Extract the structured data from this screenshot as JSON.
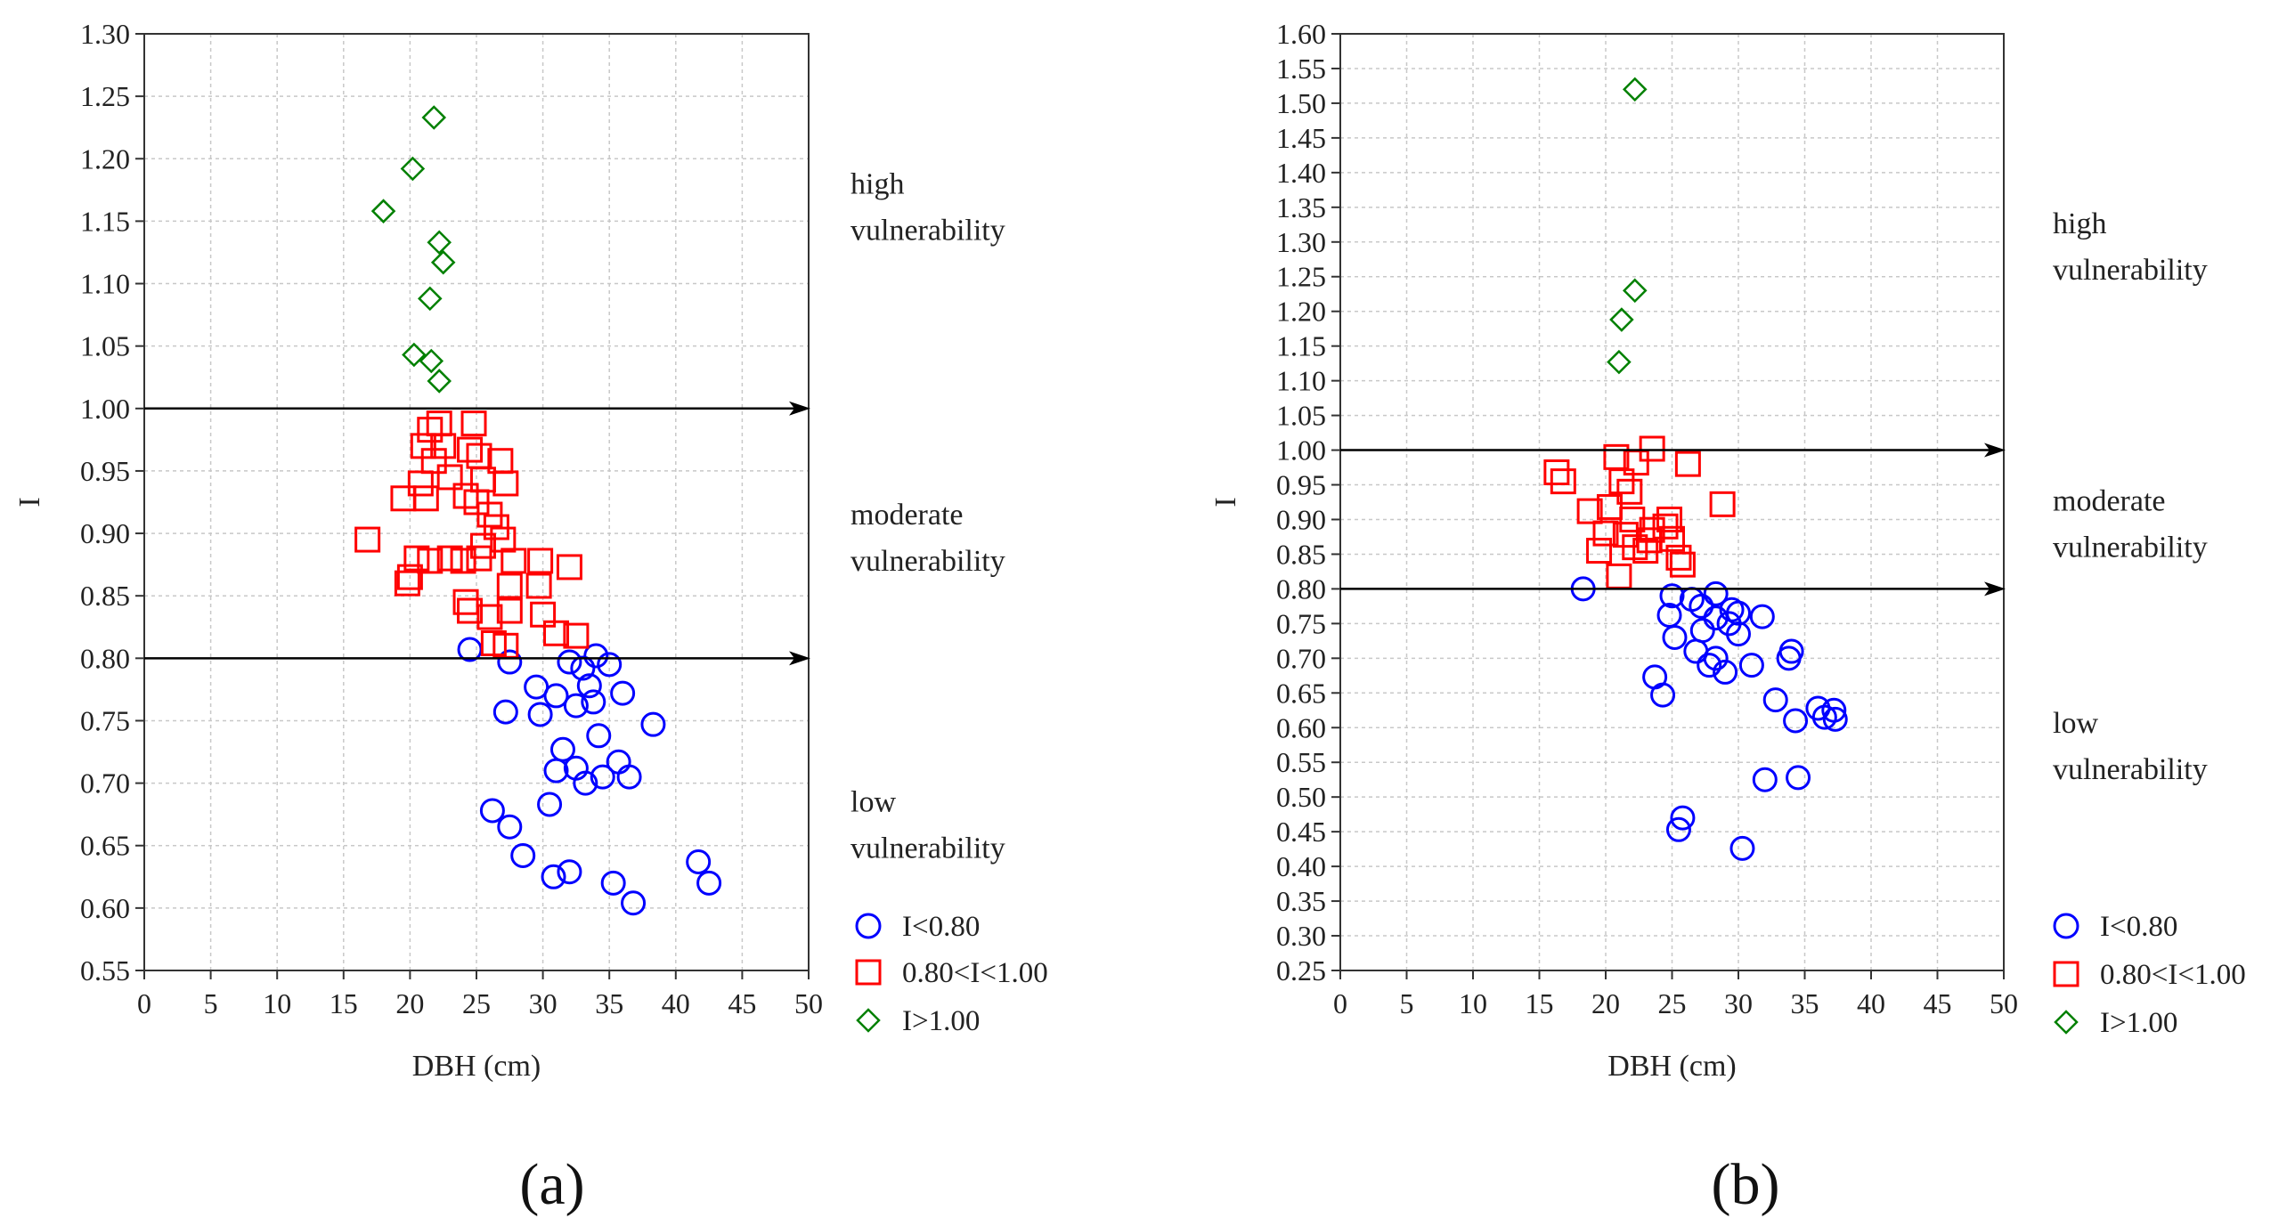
{
  "chart_data": [
    {
      "type": "scatter",
      "panel_label": "(a)",
      "xlabel": "DBH (cm)",
      "ylabel": "I",
      "xlim": [
        0,
        50
      ],
      "ylim": [
        0.55,
        1.3
      ],
      "x_ticks": [
        "0",
        "5",
        "10",
        "15",
        "20",
        "25",
        "30",
        "35",
        "40",
        "45",
        "50"
      ],
      "y_ticks": [
        "0.55",
        "0.60",
        "0.65",
        "0.70",
        "0.75",
        "0.80",
        "0.85",
        "0.90",
        "0.95",
        "1.00",
        "1.05",
        "1.10",
        "1.15",
        "1.20",
        "1.25",
        "1.30"
      ],
      "thresholds": [
        1.0,
        0.8
      ],
      "zones": [
        {
          "lines": [
            "high",
            "vulnerability"
          ],
          "y": 1.165
        },
        {
          "lines": [
            "moderate",
            "vulnerability"
          ],
          "y": 0.9
        },
        {
          "lines": [
            "low",
            "vulnerability"
          ],
          "y": 0.67
        }
      ],
      "legend": [
        "I<0.80",
        "0.80<I<1.00",
        "I>1.00"
      ],
      "series": [
        {
          "name": "I<0.80",
          "marker": "circle",
          "color": "#0000ff",
          "points": [
            [
              24.5,
              0.807
            ],
            [
              27.5,
              0.797
            ],
            [
              29.5,
              0.777
            ],
            [
              31,
              0.77
            ],
            [
              32,
              0.797
            ],
            [
              33,
              0.792
            ],
            [
              34,
              0.802
            ],
            [
              35,
              0.795
            ],
            [
              36,
              0.772
            ],
            [
              33.5,
              0.778
            ],
            [
              27.2,
              0.757
            ],
            [
              29.8,
              0.755
            ],
            [
              32.5,
              0.762
            ],
            [
              33.8,
              0.765
            ],
            [
              34.2,
              0.738
            ],
            [
              38.3,
              0.747
            ],
            [
              31.5,
              0.727
            ],
            [
              31,
              0.71
            ],
            [
              32.5,
              0.712
            ],
            [
              33.2,
              0.7
            ],
            [
              34.5,
              0.705
            ],
            [
              35.7,
              0.717
            ],
            [
              36.5,
              0.705
            ],
            [
              30.5,
              0.683
            ],
            [
              26.2,
              0.678
            ],
            [
              27.5,
              0.665
            ],
            [
              28.5,
              0.642
            ],
            [
              30.8,
              0.625
            ],
            [
              32,
              0.629
            ],
            [
              35.3,
              0.62
            ],
            [
              36.8,
              0.604
            ],
            [
              41.7,
              0.637
            ],
            [
              42.5,
              0.62
            ]
          ]
        },
        {
          "name": "0.80<I<1.00",
          "marker": "square",
          "color": "#ff0000",
          "points": [
            [
              21.5,
              0.983
            ],
            [
              22.2,
              0.988
            ],
            [
              24.8,
              0.988
            ],
            [
              21,
              0.97
            ],
            [
              22.5,
              0.97
            ],
            [
              24.5,
              0.967
            ],
            [
              25.2,
              0.962
            ],
            [
              26.8,
              0.958
            ],
            [
              21.8,
              0.958
            ],
            [
              20.8,
              0.94
            ],
            [
              23,
              0.945
            ],
            [
              25.5,
              0.943
            ],
            [
              27.2,
              0.94
            ],
            [
              19.5,
              0.928
            ],
            [
              21.2,
              0.928
            ],
            [
              24.2,
              0.93
            ],
            [
              25,
              0.925
            ],
            [
              26,
              0.915
            ],
            [
              26.5,
              0.905
            ],
            [
              27,
              0.895
            ],
            [
              16.8,
              0.895
            ],
            [
              25.5,
              0.89
            ],
            [
              20.5,
              0.88
            ],
            [
              21.5,
              0.878
            ],
            [
              23,
              0.88
            ],
            [
              24,
              0.878
            ],
            [
              25.2,
              0.88
            ],
            [
              27.8,
              0.878
            ],
            [
              29.8,
              0.878
            ],
            [
              32,
              0.873
            ],
            [
              20,
              0.865
            ],
            [
              19.8,
              0.86
            ],
            [
              27.5,
              0.858
            ],
            [
              29.7,
              0.858
            ],
            [
              24.2,
              0.845
            ],
            [
              24.5,
              0.838
            ],
            [
              26,
              0.833
            ],
            [
              27.5,
              0.838
            ],
            [
              30,
              0.835
            ],
            [
              31,
              0.82
            ],
            [
              32.5,
              0.818
            ],
            [
              26.3,
              0.812
            ],
            [
              27.2,
              0.81
            ]
          ]
        },
        {
          "name": "I>1.00",
          "marker": "diamond",
          "color": "#008000",
          "points": [
            [
              21.8,
              1.233
            ],
            [
              20.2,
              1.192
            ],
            [
              18,
              1.158
            ],
            [
              22.2,
              1.133
            ],
            [
              22.5,
              1.117
            ],
            [
              21.5,
              1.088
            ],
            [
              20.3,
              1.043
            ],
            [
              21.6,
              1.038
            ],
            [
              22.2,
              1.022
            ]
          ]
        }
      ]
    },
    {
      "type": "scatter",
      "panel_label": "(b)",
      "xlabel": "DBH (cm)",
      "ylabel": "I",
      "xlim": [
        0,
        50
      ],
      "ylim": [
        0.25,
        1.6
      ],
      "x_ticks": [
        "0",
        "5",
        "10",
        "15",
        "20",
        "25",
        "30",
        "35",
        "40",
        "45",
        "50"
      ],
      "y_ticks": [
        "0.25",
        "0.30",
        "0.35",
        "0.40",
        "0.45",
        "0.50",
        "0.55",
        "0.60",
        "0.65",
        "0.70",
        "0.75",
        "0.80",
        "0.85",
        "0.90",
        "0.95",
        "1.00",
        "1.05",
        "1.10",
        "1.15",
        "1.20",
        "1.25",
        "1.30",
        "1.35",
        "1.40",
        "1.45",
        "1.50",
        "1.55",
        "1.60"
      ],
      "thresholds": [
        1.0,
        0.8
      ],
      "zones": [
        {
          "lines": [
            "high",
            "vulnerability"
          ],
          "y": 1.3
        },
        {
          "lines": [
            "moderate",
            "vulnerability"
          ],
          "y": 0.9
        },
        {
          "lines": [
            "low",
            "vulnerability"
          ],
          "y": 0.58
        }
      ],
      "legend": [
        "I<0.80",
        "0.80<I<1.00",
        "I>1.00"
      ],
      "series": [
        {
          "name": "I<0.80",
          "marker": "circle",
          "color": "#0000ff",
          "points": [
            [
              18.3,
              0.8
            ],
            [
              25,
              0.79
            ],
            [
              26.5,
              0.785
            ],
            [
              28.3,
              0.793
            ],
            [
              27.2,
              0.775
            ],
            [
              29.5,
              0.77
            ],
            [
              30,
              0.765
            ],
            [
              24.8,
              0.762
            ],
            [
              28.3,
              0.758
            ],
            [
              31.8,
              0.76
            ],
            [
              27.3,
              0.74
            ],
            [
              29.3,
              0.75
            ],
            [
              30,
              0.735
            ],
            [
              25.2,
              0.73
            ],
            [
              26.8,
              0.71
            ],
            [
              28.3,
              0.7
            ],
            [
              27.8,
              0.69
            ],
            [
              29,
              0.68
            ],
            [
              31,
              0.69
            ],
            [
              34,
              0.71
            ],
            [
              33.8,
              0.7
            ],
            [
              23.7,
              0.673
            ],
            [
              24.3,
              0.647
            ],
            [
              32.8,
              0.64
            ],
            [
              36,
              0.628
            ],
            [
              37.2,
              0.625
            ],
            [
              36.5,
              0.615
            ],
            [
              37.3,
              0.612
            ],
            [
              34.3,
              0.61
            ],
            [
              32,
              0.525
            ],
            [
              34.5,
              0.528
            ],
            [
              25.8,
              0.47
            ],
            [
              25.5,
              0.453
            ],
            [
              30.3,
              0.426
            ]
          ]
        },
        {
          "name": "0.80<I<1.00",
          "marker": "square",
          "color": "#ff0000",
          "points": [
            [
              23.5,
              1.002
            ],
            [
              20.8,
              0.99
            ],
            [
              22.3,
              0.982
            ],
            [
              26.2,
              0.98
            ],
            [
              16.3,
              0.968
            ],
            [
              16.8,
              0.955
            ],
            [
              21.2,
              0.955
            ],
            [
              21.8,
              0.94
            ],
            [
              28.8,
              0.922
            ],
            [
              18.8,
              0.912
            ],
            [
              20.3,
              0.918
            ],
            [
              22,
              0.9
            ],
            [
              24.8,
              0.9
            ],
            [
              24.5,
              0.89
            ],
            [
              23.5,
              0.885
            ],
            [
              20,
              0.88
            ],
            [
              21.5,
              0.878
            ],
            [
              23.3,
              0.87
            ],
            [
              25,
              0.872
            ],
            [
              22.2,
              0.86
            ],
            [
              19.5,
              0.855
            ],
            [
              23,
              0.855
            ],
            [
              25.5,
              0.845
            ],
            [
              25.8,
              0.835
            ],
            [
              21,
              0.818
            ]
          ]
        },
        {
          "name": "I>1.00",
          "marker": "diamond",
          "color": "#008000",
          "points": [
            [
              22.2,
              1.52
            ],
            [
              22.2,
              1.23
            ],
            [
              21.2,
              1.188
            ],
            [
              21,
              1.127
            ]
          ]
        }
      ]
    }
  ]
}
